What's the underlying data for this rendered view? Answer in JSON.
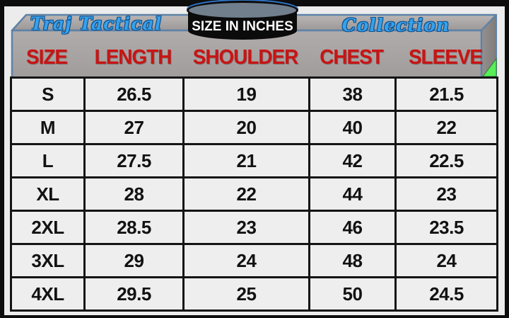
{
  "header": {
    "brand_left": "Traj Tactical",
    "brand_right": "Collection",
    "badge_label": "SIZE IN INCHES"
  },
  "chart_data": {
    "type": "table",
    "title": "SIZE IN INCHES",
    "columns": [
      "SIZE",
      "LENGTH",
      "SHOULDER",
      "CHEST",
      "SLEEVE"
    ],
    "rows": [
      [
        "S",
        "26.5",
        "19",
        "38",
        "21.5"
      ],
      [
        "M",
        "27",
        "20",
        "40",
        "22"
      ],
      [
        "L",
        "27.5",
        "21",
        "42",
        "22.5"
      ],
      [
        "XL",
        "28",
        "22",
        "44",
        "23"
      ],
      [
        "2XL",
        "28.5",
        "23",
        "46",
        "23.5"
      ],
      [
        "3XL",
        "29",
        "24",
        "48",
        "24"
      ],
      [
        "4XL",
        "29.5",
        "25",
        "50",
        "24.5"
      ]
    ]
  },
  "colors": {
    "frame": "#0d0d0d",
    "panel_background": "#ececec",
    "front_face": "#a8a4a4",
    "top_face": "#b3afae",
    "side_face": "#8e8a89",
    "box_outline": "#5e82a8",
    "header_text": "#c81414",
    "brand_text": "#35a1ec",
    "corner_triangle": "#58ee58",
    "badge_body": "#0b0b0b",
    "badge_top": "#717f8d",
    "badge_text": "#ffffff",
    "cell_background": "#eeeeee",
    "cell_border": "#141414"
  }
}
